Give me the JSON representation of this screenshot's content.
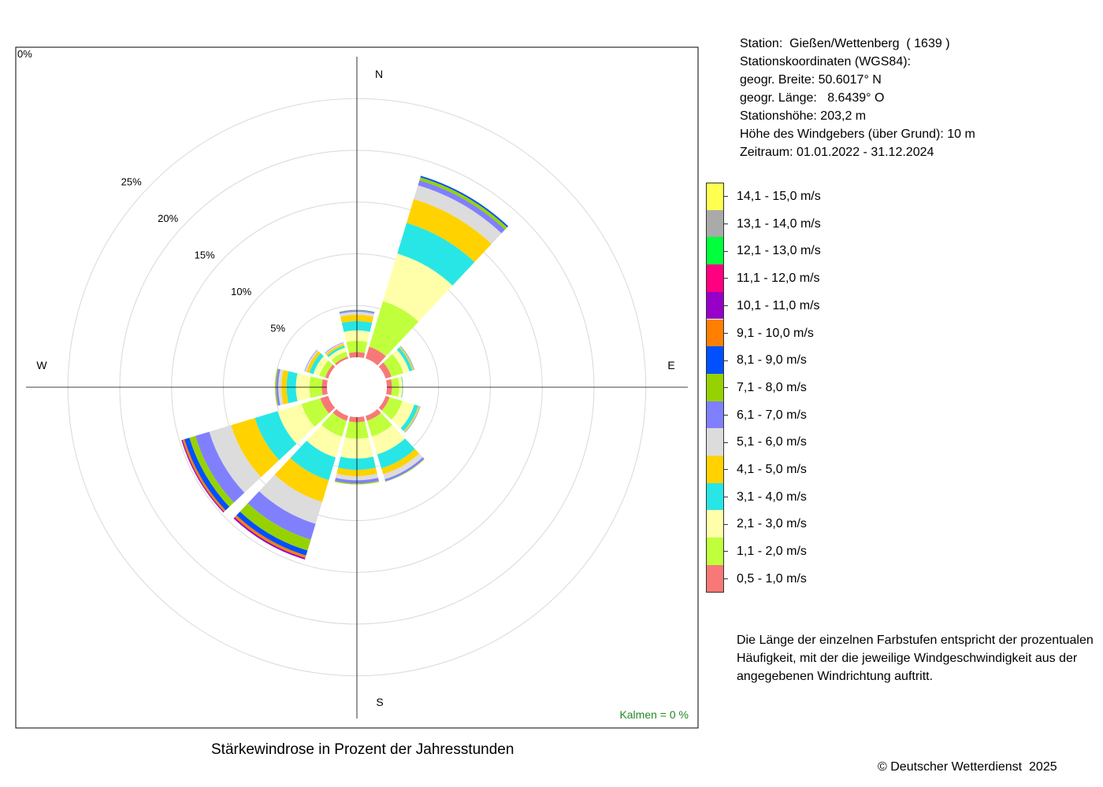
{
  "station": {
    "lines": [
      "Station:  Gießen/Wettenberg  ( 1639 )",
      "Stationskoordinaten (WGS84):",
      "geogr. Breite: 50.6017° N",
      "geogr. Länge:   8.6439° O",
      "Stationshöhe: 203,2 m",
      "Höhe des Windgebers (über Grund): 10 m",
      "Zeitraum: 01.01.2022 - 31.12.2024"
    ]
  },
  "note": "Die Länge der einzelnen Farbstufen entspricht der prozentualen Häufigkeit, mit der die jeweilige Windgeschwindigkeit aus der angegebenen Windrichtung auftritt.",
  "caption": "Stärkewindrose in Prozent der Jahresstunden",
  "copyright": "© Deutscher Wetterdienst  2025",
  "calm_label": "Kalmen  =  0 %",
  "chart_data": {
    "type": "wind-rose",
    "title": "Stärkewindrose in Prozent der Jahresstunden",
    "directions": [
      0,
      30,
      60,
      90,
      120,
      150,
      180,
      210,
      240,
      270,
      300,
      330
    ],
    "compass_labels": {
      "N": "N",
      "E": "E",
      "S": "S",
      "W": "W"
    },
    "radial_ticks": [
      "0%",
      "5%",
      "10%",
      "15%",
      "20%",
      "25%"
    ],
    "radial_tick_values": [
      0,
      5,
      10,
      15,
      20,
      25
    ],
    "calm_percent": 0,
    "speed_classes": [
      {
        "label": "0,5 - 1,0 m/s",
        "color": "#f87878"
      },
      {
        "label": "1,1 - 2,0 m/s",
        "color": "#c0ff3c"
      },
      {
        "label": "2,1 - 3,0 m/s",
        "color": "#ffffaa"
      },
      {
        "label": "3,1 - 4,0 m/s",
        "color": "#28e6e6"
      },
      {
        "label": "4,1 - 5,0 m/s",
        "color": "#ffd200"
      },
      {
        "label": "5,1 - 6,0 m/s",
        "color": "#dcdcdc"
      },
      {
        "label": "6,1 - 7,0 m/s",
        "color": "#8080ff"
      },
      {
        "label": "7,1 - 8,0 m/s",
        "color": "#96d200"
      },
      {
        "label": "8,1 - 9,0 m/s",
        "color": "#0050ff"
      },
      {
        "label": "9,1 - 10,0 m/s",
        "color": "#ff8000"
      },
      {
        "label": "10,1 - 11,0 m/s",
        "color": "#9600c8"
      },
      {
        "label": "11,1 - 12,0 m/s",
        "color": "#ff0080"
      },
      {
        "label": "12,1 - 13,0 m/s",
        "color": "#00ff3c"
      },
      {
        "label": "13,1 - 14,0 m/s",
        "color": "#aaaaaa"
      },
      {
        "label": "14,1 - 15,0 m/s",
        "color": "#ffff50"
      }
    ],
    "series": [
      {
        "direction": 0,
        "values": [
          0.5,
          1.1,
          1.0,
          0.9,
          0.6,
          0.3,
          0.1,
          0.05,
          0.03
        ]
      },
      {
        "direction": 30,
        "values": [
          1.2,
          4.6,
          4.8,
          3.1,
          2.4,
          1.4,
          0.5,
          0.3,
          0.15
        ]
      },
      {
        "direction": 60,
        "values": [
          0.6,
          1.2,
          0.6,
          0.3,
          0.1,
          0.05,
          0.05,
          0.02
        ]
      },
      {
        "direction": 90,
        "values": [
          0.5,
          0.7,
          0.3,
          0.05,
          0.02,
          0.01,
          0.01
        ]
      },
      {
        "direction": 120,
        "values": [
          0.4,
          1.3,
          1.2,
          0.4,
          0.1,
          0.05,
          0.05,
          0.02
        ]
      },
      {
        "direction": 150,
        "values": [
          0.5,
          1.6,
          1.8,
          1.4,
          0.6,
          0.5,
          0.2,
          0.05
        ]
      },
      {
        "direction": 180,
        "values": [
          0.5,
          1.6,
          1.9,
          1.1,
          0.6,
          0.4,
          0.3,
          0.1
        ]
      },
      {
        "direction": 210,
        "values": [
          0.5,
          1.6,
          2.1,
          2.3,
          2.2,
          2.2,
          1.6,
          1.1,
          0.5,
          0.25,
          0.15
        ]
      },
      {
        "direction": 240,
        "values": [
          0.8,
          1.9,
          2.4,
          2.3,
          2.4,
          2.2,
          1.4,
          0.6,
          0.5,
          0.2,
          0.1
        ]
      },
      {
        "direction": 270,
        "values": [
          0.5,
          1.2,
          1.3,
          0.9,
          0.5,
          0.3,
          0.2,
          0.1
        ]
      },
      {
        "direction": 300,
        "values": [
          0.3,
          0.6,
          0.6,
          0.4,
          0.3,
          0.15,
          0.05
        ]
      },
      {
        "direction": 330,
        "values": [
          0.2,
          0.5,
          0.4,
          0.2,
          0.2,
          0.1,
          0.05
        ]
      }
    ],
    "legend_position": "right",
    "grid": true
  }
}
